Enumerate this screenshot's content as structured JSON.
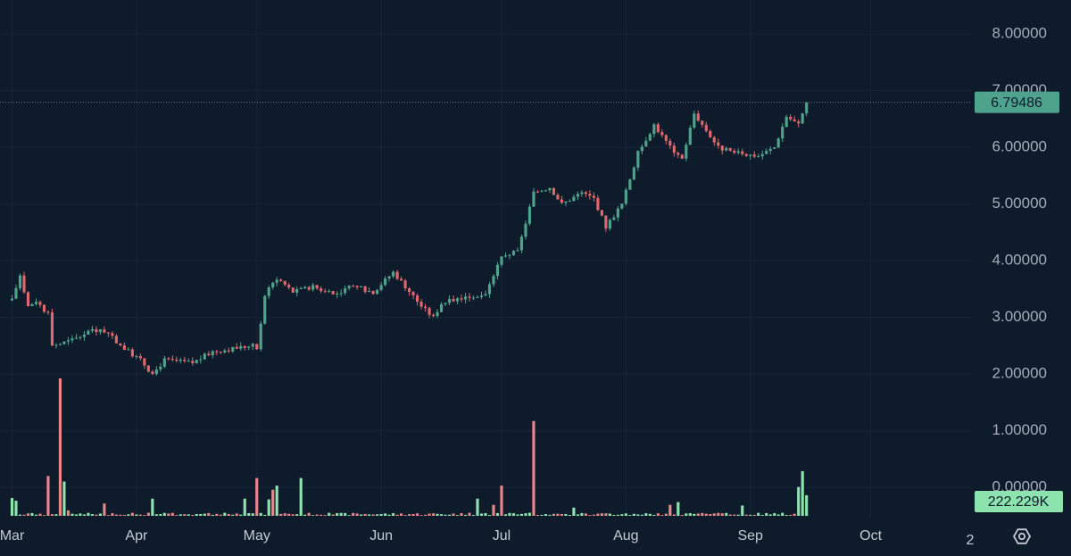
{
  "chart_data": {
    "type": "candlestick",
    "y_axis": {
      "ticks": [
        "8.00000",
        "7.00000",
        "6.00000",
        "5.00000",
        "4.00000",
        "3.00000",
        "2.00000",
        "1.00000",
        "0.00000"
      ],
      "range": [
        -0.5,
        8.6
      ]
    },
    "x_axis": {
      "ticks": [
        {
          "label": "Mar",
          "day": 0
        },
        {
          "label": "Apr",
          "day": 31
        },
        {
          "label": "May",
          "day": 61
        },
        {
          "label": "Jun",
          "day": 92
        },
        {
          "label": "Jul",
          "day": 122
        },
        {
          "label": "Aug",
          "day": 153
        },
        {
          "label": "Sep",
          "day": 184
        },
        {
          "label": "Oct",
          "day": 214
        }
      ],
      "range": [
        -3,
        239
      ]
    },
    "last_price": {
      "label": "6.79486",
      "value": 6.79486
    },
    "last_volume": {
      "label": "222.229K"
    },
    "toolbar": {
      "interval_label": "2"
    },
    "colors": {
      "up": "#4fa38c",
      "down": "#e0676b",
      "vol_up": "#8de3ad",
      "vol_down": "#e8878a",
      "price_badge": "#4fa38c",
      "volume_badge": "#8de3ad"
    },
    "price_path": [
      [
        0,
        3.3
      ],
      [
        2,
        3.75
      ],
      [
        4,
        3.2
      ],
      [
        6,
        3.3
      ],
      [
        9,
        3.05
      ],
      [
        10,
        2.5
      ],
      [
        15,
        2.6
      ],
      [
        20,
        2.8
      ],
      [
        24,
        2.7
      ],
      [
        28,
        2.45
      ],
      [
        32,
        2.25
      ],
      [
        35,
        2.0
      ],
      [
        38,
        2.25
      ],
      [
        45,
        2.2
      ],
      [
        50,
        2.4
      ],
      [
        55,
        2.45
      ],
      [
        60,
        2.5
      ],
      [
        61,
        2.45
      ],
      [
        63,
        3.4
      ],
      [
        66,
        3.7
      ],
      [
        70,
        3.45
      ],
      [
        75,
        3.55
      ],
      [
        80,
        3.4
      ],
      [
        85,
        3.55
      ],
      [
        90,
        3.45
      ],
      [
        95,
        3.8
      ],
      [
        98,
        3.55
      ],
      [
        102,
        3.2
      ],
      [
        105,
        3.0
      ],
      [
        107,
        3.25
      ],
      [
        112,
        3.35
      ],
      [
        118,
        3.4
      ],
      [
        122,
        4.1
      ],
      [
        126,
        4.15
      ],
      [
        130,
        5.2
      ],
      [
        134,
        5.3
      ],
      [
        137,
        5.0
      ],
      [
        142,
        5.2
      ],
      [
        145,
        5.1
      ],
      [
        148,
        4.6
      ],
      [
        152,
        5.0
      ],
      [
        156,
        5.9
      ],
      [
        160,
        6.4
      ],
      [
        164,
        6.0
      ],
      [
        167,
        5.8
      ],
      [
        170,
        6.6
      ],
      [
        173,
        6.3
      ],
      [
        176,
        6.0
      ],
      [
        180,
        5.9
      ],
      [
        186,
        5.85
      ],
      [
        190,
        6.0
      ],
      [
        193,
        6.55
      ],
      [
        196,
        6.4
      ],
      [
        198,
        6.79
      ]
    ],
    "volume_spikes": [
      {
        "day": 0,
        "value": 0.26,
        "dir": "up"
      },
      {
        "day": 1,
        "value": 0.22,
        "dir": "up"
      },
      {
        "day": 9,
        "value": 0.58,
        "dir": "down"
      },
      {
        "day": 12,
        "value": 2.0,
        "dir": "down"
      },
      {
        "day": 13,
        "value": 0.5,
        "dir": "up"
      },
      {
        "day": 14,
        "value": 0.08,
        "dir": "down"
      },
      {
        "day": 23,
        "value": 0.18,
        "dir": "down"
      },
      {
        "day": 35,
        "value": 0.25,
        "dir": "up"
      },
      {
        "day": 58,
        "value": 0.25,
        "dir": "up"
      },
      {
        "day": 61,
        "value": 0.55,
        "dir": "down"
      },
      {
        "day": 64,
        "value": 0.24,
        "dir": "up"
      },
      {
        "day": 65,
        "value": 0.38,
        "dir": "down"
      },
      {
        "day": 66,
        "value": 0.44,
        "dir": "up"
      },
      {
        "day": 72,
        "value": 0.55,
        "dir": "up"
      },
      {
        "day": 116,
        "value": 0.25,
        "dir": "up"
      },
      {
        "day": 120,
        "value": 0.16,
        "dir": "down"
      },
      {
        "day": 122,
        "value": 0.44,
        "dir": "down"
      },
      {
        "day": 130,
        "value": 1.38,
        "dir": "down"
      },
      {
        "day": 140,
        "value": 0.12,
        "dir": "up"
      },
      {
        "day": 164,
        "value": 0.16,
        "dir": "down"
      },
      {
        "day": 166,
        "value": 0.2,
        "dir": "up"
      },
      {
        "day": 182,
        "value": 0.15,
        "dir": "up"
      },
      {
        "day": 196,
        "value": 0.42,
        "dir": "up"
      },
      {
        "day": 197,
        "value": 0.65,
        "dir": "up"
      },
      {
        "day": 198,
        "value": 0.3,
        "dir": "up"
      }
    ]
  }
}
